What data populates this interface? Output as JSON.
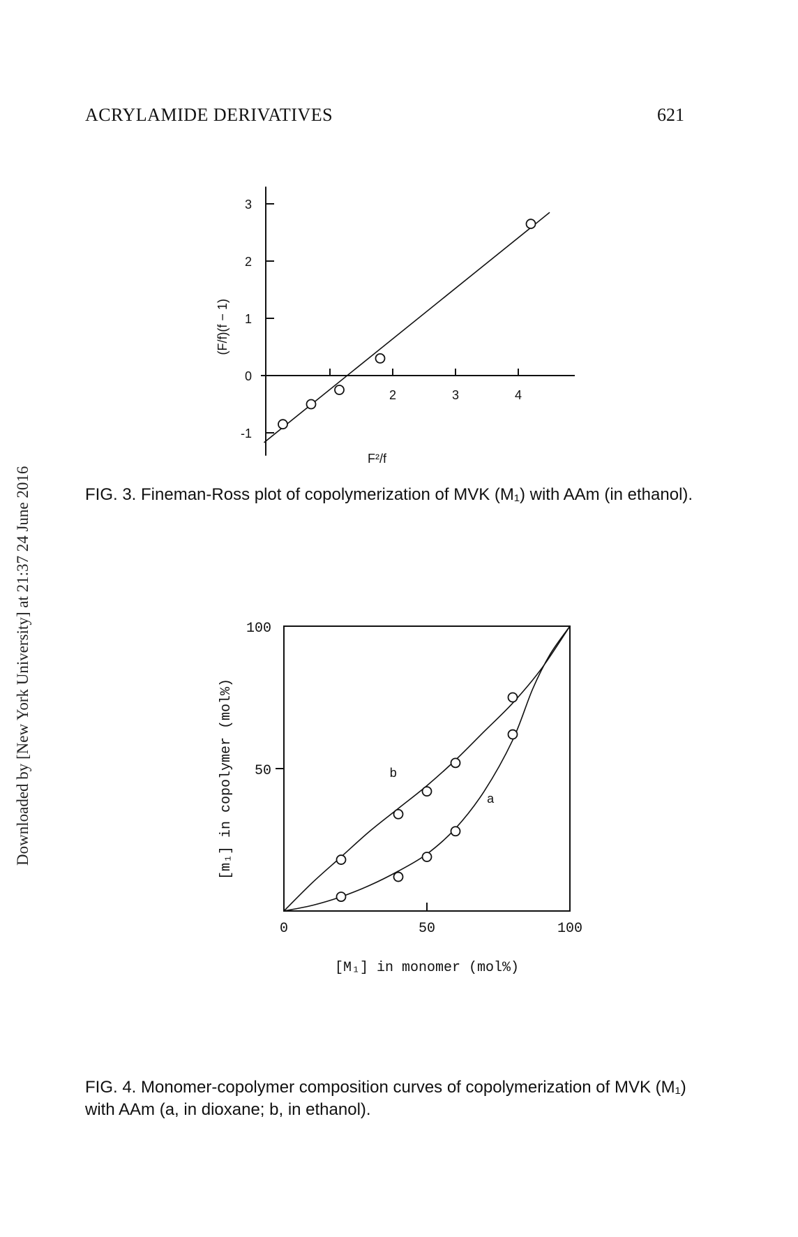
{
  "header": {
    "running_head": "ACRYLAMIDE DERIVATIVES",
    "page_number": "621"
  },
  "watermark": "Downloaded by [New York University] at 21:37 24 June 2016",
  "captions": {
    "fig3": "FIG. 3. Fineman-Ross plot of copolymerization of MVK (M₁) with AAm (in ethanol).",
    "fig4": "FIG. 4. Monomer-copolymer composition curves of copolymerization of MVK (M₁) with AAm (a, in dioxane; b, in ethanol)."
  },
  "chart_data": [
    {
      "type": "scatter",
      "title": "",
      "xlabel": "F²/f",
      "ylabel": "(F/f)(f − 1)",
      "xlim": [
        -0.1,
        4.9
      ],
      "ylim": [
        -1.4,
        3.3
      ],
      "x_ticks": [
        1,
        2,
        3,
        4
      ],
      "x_tick_labels": [
        "",
        "2",
        "3",
        "4"
      ],
      "y_ticks": [
        -1,
        0,
        1,
        2,
        3
      ],
      "y_tick_labels": [
        "-1",
        "0",
        "1",
        "2",
        "3"
      ],
      "grid": false,
      "points": [
        {
          "x": 0.25,
          "y": -0.85
        },
        {
          "x": 0.7,
          "y": -0.5
        },
        {
          "x": 1.15,
          "y": -0.25
        },
        {
          "x": 1.8,
          "y": 0.3
        },
        {
          "x": 4.2,
          "y": 2.65
        }
      ],
      "fit_line": {
        "x": [
          -0.05,
          4.5
        ],
        "y": [
          -1.17,
          2.85
        ]
      }
    },
    {
      "type": "line",
      "title": "",
      "xlabel": "[M₁] in monomer (mol%)",
      "ylabel": "[m₁] in copolymer (mol%)",
      "xlim": [
        0,
        100
      ],
      "ylim": [
        0,
        100
      ],
      "x_ticks": [
        0,
        50,
        100
      ],
      "x_tick_labels": [
        "0",
        "50",
        "100"
      ],
      "y_ticks": [
        50,
        100
      ],
      "y_tick_labels": [
        "50",
        "100"
      ],
      "grid": false,
      "series": [
        {
          "name": "a",
          "points": [
            [
              20,
              5
            ],
            [
              40,
              12
            ],
            [
              50,
              19
            ],
            [
              60,
              28
            ],
            [
              80,
              62
            ]
          ],
          "curve": [
            [
              0,
              0
            ],
            [
              10,
              2
            ],
            [
              20,
              5
            ],
            [
              30,
              9
            ],
            [
              40,
              14
            ],
            [
              50,
              20
            ],
            [
              60,
              29
            ],
            [
              70,
              42
            ],
            [
              80,
              60
            ],
            [
              87,
              78
            ],
            [
              93,
              90
            ],
            [
              100,
              100
            ]
          ]
        },
        {
          "name": "b",
          "points": [
            [
              20,
              18
            ],
            [
              40,
              34
            ],
            [
              50,
              42
            ],
            [
              60,
              52
            ],
            [
              80,
              75
            ]
          ],
          "curve": [
            [
              0,
              0
            ],
            [
              10,
              10
            ],
            [
              20,
              19
            ],
            [
              30,
              28
            ],
            [
              40,
              36
            ],
            [
              50,
              44
            ],
            [
              60,
              53
            ],
            [
              70,
              63
            ],
            [
              80,
              73
            ],
            [
              90,
              85
            ],
            [
              100,
              100
            ]
          ]
        }
      ]
    }
  ]
}
